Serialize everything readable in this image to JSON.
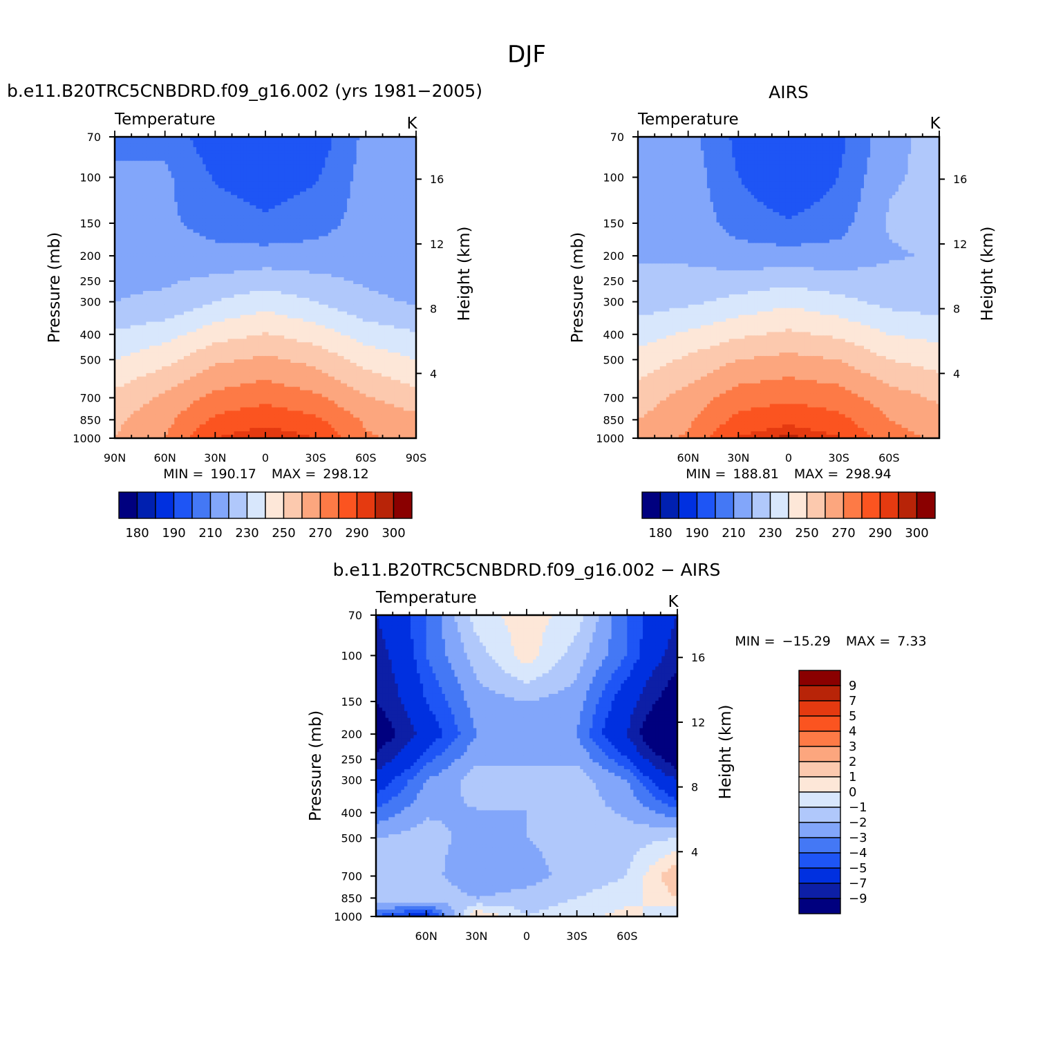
{
  "figure": {
    "title": "DJF"
  },
  "colors": {
    "abs_palette": [
      "#00007f",
      "#0020b0",
      "#0030e0",
      "#1e55f5",
      "#4478f5",
      "#82a6fa",
      "#b0c8fb",
      "#d8e7fc",
      "#fde7d8",
      "#fcc9ae",
      "#fca67e",
      "#fd7a46",
      "#fb5420",
      "#e53a10",
      "#b82408",
      "#8a0000"
    ],
    "diff_palette": [
      "#00007f",
      "#0d1fa6",
      "#0030e0",
      "#1e55f5",
      "#4478f5",
      "#82a6fa",
      "#b0c8fb",
      "#d8e7fc",
      "#fde7d8",
      "#fcc9ae",
      "#fca67e",
      "#fd7a46",
      "#fb5420",
      "#e53a10",
      "#b82408",
      "#8a0000"
    ]
  },
  "panels": [
    {
      "title": "b.e11.B20TRC5CNBDRD.f09_g16.002 (yrs 1981−2005)",
      "variable": "Temperature",
      "units": "K",
      "ylabel": "Pressure (mb)",
      "y2label": "Height (km)",
      "min_label": "MIN =",
      "min_value": "190.17",
      "max_label": "MAX =",
      "max_value": "298.12",
      "x_ticks": [
        "90N",
        "60N",
        "30N",
        "0",
        "30S",
        "60S",
        "90S"
      ],
      "colorbar_labels": [
        "180",
        "190",
        "210",
        "230",
        "250",
        "270",
        "290",
        "300"
      ]
    },
    {
      "title": "AIRS",
      "variable": "Temperature",
      "units": "K",
      "ylabel": "Pressure (mb)",
      "y2label": "Height (km)",
      "min_label": "MIN =",
      "min_value": "188.81",
      "max_label": "MAX =",
      "max_value": "298.94",
      "x_ticks": [
        "",
        "60N",
        "30N",
        "0",
        "30S",
        "60S",
        ""
      ],
      "colorbar_labels": [
        "180",
        "190",
        "210",
        "230",
        "250",
        "270",
        "290",
        "300"
      ]
    },
    {
      "title": "b.e11.B20TRC5CNBDRD.f09_g16.002 − AIRS",
      "variable": "Temperature",
      "units": "K",
      "ylabel": "Pressure (mb)",
      "y2label": "Height (km)",
      "min_label": "MIN =",
      "min_value": "−15.29",
      "max_label": "MAX =",
      "max_value": "7.33",
      "x_ticks": [
        "",
        "60N",
        "30N",
        "0",
        "30S",
        "60S",
        ""
      ],
      "colorbar_labels": [
        "9",
        "7",
        "5",
        "4",
        "3",
        "2",
        "1",
        "0",
        "−1",
        "−2",
        "−3",
        "−4",
        "−5",
        "−7",
        "−9"
      ]
    }
  ],
  "chart_data": [
    {
      "type": "heatmap",
      "title": "b.e11.B20TRC5CNBDRD.f09_g16.002 (yrs 1981−2005)",
      "variable": "Temperature",
      "units": "K",
      "ylabel": "Pressure (mb)",
      "y2label": "Height (km)",
      "y_ticks": [
        70,
        100,
        150,
        200,
        250,
        300,
        400,
        500,
        700,
        850,
        1000
      ],
      "y2_ticks": [
        4,
        8,
        12,
        16
      ],
      "x_ticks": [
        "90N",
        "60N",
        "30N",
        "0",
        "30S",
        "60S",
        "90S"
      ],
      "xlim": [
        90,
        -90
      ],
      "ylim": [
        1000,
        70
      ],
      "y_scale": "log",
      "min": 190.17,
      "max": 298.12,
      "levels": [
        180,
        185,
        190,
        200,
        210,
        220,
        230,
        240,
        250,
        260,
        270,
        280,
        290,
        295,
        300
      ],
      "colorbar_labels": [
        "180",
        "190",
        "210",
        "230",
        "250",
        "270",
        "290",
        "300"
      ],
      "lat": [
        90,
        60,
        30,
        0,
        -30,
        -60,
        -90
      ],
      "pressure": [
        70,
        100,
        150,
        200,
        300,
        500,
        700,
        850,
        1000
      ],
      "values": [
        [
          207,
          207,
          193,
          192,
          193,
          213,
          216
        ],
        [
          212,
          212,
          199,
          194,
          199,
          214,
          217
        ],
        [
          214,
          212,
          206,
          202,
          206,
          214,
          217
        ],
        [
          216,
          215,
          213,
          214,
          214,
          215,
          215
        ],
        [
          220,
          222,
          230,
          236,
          230,
          222,
          219
        ],
        [
          240,
          247,
          258,
          262,
          257,
          246,
          240
        ],
        [
          253,
          262,
          273,
          277,
          272,
          261,
          254
        ],
        [
          258,
          267,
          282,
          287,
          282,
          268,
          263
        ],
        [
          260,
          270,
          290,
          296,
          290,
          272,
          266
        ]
      ]
    },
    {
      "type": "heatmap",
      "title": "AIRS",
      "variable": "Temperature",
      "units": "K",
      "ylabel": "Pressure (mb)",
      "y2label": "Height (km)",
      "y_ticks": [
        70,
        100,
        150,
        200,
        250,
        300,
        400,
        500,
        700,
        850,
        1000
      ],
      "y2_ticks": [
        4,
        8,
        12,
        16
      ],
      "x_ticks": [
        "",
        "60N",
        "30N",
        "0",
        "30S",
        "60S",
        ""
      ],
      "xlim": [
        90,
        -90
      ],
      "ylim": [
        1000,
        70
      ],
      "y_scale": "log",
      "min": 188.81,
      "max": 298.94,
      "levels": [
        180,
        185,
        190,
        200,
        210,
        220,
        230,
        240,
        250,
        260,
        270,
        280,
        290,
        295,
        300
      ],
      "colorbar_labels": [
        "180",
        "190",
        "210",
        "230",
        "250",
        "270",
        "290",
        "300"
      ],
      "lat": [
        90,
        60,
        30,
        0,
        -30,
        -60,
        -90
      ],
      "pressure": [
        70,
        100,
        150,
        200,
        300,
        500,
        700,
        850,
        1000
      ],
      "values": [
        [
          212,
          214,
          197,
          193,
          197,
          217,
          224
        ],
        [
          216,
          216,
          200,
          190,
          200,
          219,
          222
        ],
        [
          218,
          216,
          206,
          201,
          206,
          221,
          223
        ],
        [
          219,
          218,
          214,
          214,
          214,
          219,
          221
        ],
        [
          225,
          228,
          233,
          238,
          233,
          227,
          225
        ],
        [
          244,
          252,
          260,
          263,
          260,
          250,
          246
        ],
        [
          255,
          264,
          275,
          278,
          275,
          265,
          258
        ],
        [
          260,
          268,
          283,
          287,
          283,
          270,
          265
        ],
        [
          262,
          272,
          291,
          297,
          291,
          274,
          268
        ]
      ]
    },
    {
      "type": "heatmap",
      "title": "b.e11.B20TRC5CNBDRD.f09_g16.002 − AIRS",
      "variable": "Temperature",
      "units": "K",
      "ylabel": "Pressure (mb)",
      "y2label": "Height (km)",
      "y_ticks": [
        70,
        100,
        150,
        200,
        250,
        300,
        400,
        500,
        700,
        850,
        1000
      ],
      "y2_ticks": [
        4,
        8,
        12,
        16
      ],
      "x_ticks": [
        "",
        "60N",
        "30N",
        "0",
        "30S",
        "60S",
        ""
      ],
      "xlim": [
        90,
        -90
      ],
      "ylim": [
        1000,
        70
      ],
      "y_scale": "log",
      "min": -15.29,
      "max": 7.33,
      "levels": [
        -9,
        -7,
        -5,
        -4,
        -3,
        -2,
        -1,
        0,
        1,
        2,
        3,
        4,
        5,
        7,
        9
      ],
      "colorbar_labels": [
        "9",
        "7",
        "5",
        "4",
        "3",
        "2",
        "1",
        "0",
        "−1",
        "−2",
        "−3",
        "−4",
        "−5",
        "−7",
        "−9"
      ],
      "lat": [
        90,
        60,
        30,
        0,
        -30,
        -60,
        -90
      ],
      "pressure": [
        70,
        100,
        150,
        200,
        300,
        500,
        700,
        850,
        1000
      ],
      "values": [
        [
          -7,
          -4,
          -0.5,
          0.5,
          -0.5,
          -4,
          -7
        ],
        [
          -8,
          -4,
          -1.5,
          0.5,
          -1.5,
          -4,
          -8
        ],
        [
          -9,
          -5,
          -2.5,
          -2,
          -2.5,
          -6,
          -11
        ],
        [
          -11,
          -6,
          -3,
          -2,
          -3,
          -7,
          -15
        ],
        [
          -6,
          -3,
          -1.5,
          -2,
          -1.5,
          -3,
          -7
        ],
        [
          -2,
          -1.5,
          -2.5,
          -2,
          -1.5,
          -1.5,
          -1
        ],
        [
          -1,
          -1.5,
          -3,
          -2.5,
          -1.5,
          -1,
          2
        ],
        [
          -1,
          -1,
          -2,
          -1.5,
          -1,
          -0.5,
          1
        ],
        [
          -4,
          -6,
          1,
          -1,
          -0.5,
          0.5,
          -1
        ]
      ]
    }
  ]
}
